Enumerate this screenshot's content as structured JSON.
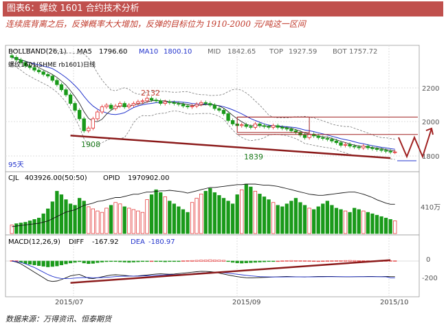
{
  "figure": {
    "title": "图表6：螺纹 1601 合约技术分析",
    "note": "连续底背离之后，反弹概率大大增加，反弹的目标位为 1910-2000 元/吨这一区间",
    "source": "数据来源：万得资讯、恒泰期货"
  },
  "colors": {
    "title_bg": "#c0504d",
    "up": "#e02020",
    "down": "#1a9a1a",
    "ma5": "#1a1a1a",
    "ma10": "#2233cc",
    "band": "#777777",
    "trend": "#8b1a1a",
    "target": "#a02020"
  },
  "chart_data": [
    {
      "type": "candlestick",
      "panel": "price",
      "indicator": {
        "name": "BOLLBAND(26,1)",
        "ma5_label": "MA5",
        "ma5": "1796.60",
        "ma10_label": "MA10",
        "ma10": "1800.10",
        "mid_label": "MID",
        "mid": "1842.65",
        "top_label": "TOP",
        "top": "1927.59",
        "bot_label": "BOT",
        "bot": "1757.72"
      },
      "instrument": "螺纹1601(SHME rb1601)日线",
      "ylim": [
        1680,
        2420
      ],
      "yticks": [
        "2200",
        "2000",
        "1800"
      ],
      "annotations": [
        "2132",
        "1908",
        "1839",
        "95天"
      ],
      "target_zone": {
        "low": 1910,
        "high": 2000,
        "label": "2000"
      },
      "close_values": [
        2350,
        2335,
        2320,
        2300,
        2290,
        2275,
        2265,
        2250,
        2240,
        2215,
        2190,
        2160,
        2130,
        2080,
        2040,
        1990,
        1920,
        1935,
        1990,
        2030,
        2060,
        2070,
        2050,
        2065,
        2080,
        2060,
        2070,
        2080,
        2090,
        2095,
        2110,
        2100,
        2095,
        2080,
        2090,
        2085,
        2080,
        2075,
        2065,
        2060,
        2065,
        2075,
        2085,
        2080,
        2070,
        2050,
        2040,
        2020,
        1980,
        1960,
        1950,
        1955,
        1945,
        1940,
        1960,
        1950,
        1945,
        1940,
        1950,
        1940,
        1935,
        1930,
        1920,
        1910,
        1895,
        1880,
        1900,
        1890,
        1880,
        1875,
        1870,
        1860,
        1850,
        1835,
        1840,
        1830,
        1825,
        1820,
        1830,
        1820,
        1815,
        1810,
        1805,
        1800,
        1795,
        1796
      ]
    },
    {
      "type": "bar",
      "panel": "volume",
      "indicator": {
        "name": "CJL",
        "value": "403926.00(50:50)",
        "opi_label": "OPID",
        "opi": "1970902.00"
      },
      "yticks": [
        "410万"
      ],
      "values": [
        12,
        14,
        15,
        16,
        18,
        20,
        22,
        28,
        35,
        45,
        60,
        55,
        48,
        42,
        40,
        50,
        46,
        38,
        35,
        32,
        30,
        36,
        40,
        44,
        42,
        38,
        36,
        34,
        32,
        30,
        48,
        55,
        62,
        58,
        52,
        46,
        42,
        38,
        34,
        30,
        44,
        50,
        56,
        60,
        64,
        58,
        54,
        50,
        46,
        42,
        55,
        62,
        70,
        66,
        60,
        56,
        52,
        48,
        44,
        40,
        38,
        42,
        46,
        50,
        44,
        40,
        36,
        34,
        38,
        42,
        46,
        40,
        36,
        34,
        32,
        30,
        36,
        34,
        32,
        30,
        28,
        26,
        24,
        22,
        20,
        18
      ],
      "opi_values": [
        10,
        11,
        12,
        13,
        14,
        15,
        16,
        18,
        20,
        24,
        28,
        32,
        36,
        38,
        40,
        44,
        48,
        50,
        52,
        55,
        56,
        58,
        60,
        62,
        62,
        64,
        66,
        68,
        68,
        70,
        72,
        72,
        73,
        74,
        74,
        75,
        74,
        73,
        72,
        70,
        72,
        74,
        76,
        78,
        80,
        80,
        81,
        82,
        83,
        84,
        85,
        85,
        86,
        86,
        86,
        85,
        84,
        84,
        83,
        82,
        80,
        78,
        76,
        74,
        72,
        70,
        68,
        67,
        66,
        66,
        67,
        68,
        69,
        70,
        71,
        72,
        72,
        70,
        68,
        65,
        62,
        58,
        55,
        52,
        50,
        50
      ]
    },
    {
      "type": "bar",
      "panel": "macd",
      "indicator": {
        "name": "MACD(12,26,9)",
        "diff_label": "DIFF",
        "diff": "-167.92",
        "dea_label": "DEA",
        "dea": "-180.97"
      },
      "yticks": [
        "0",
        "-200"
      ],
      "x_labels": [
        "2015/07",
        "2015/09",
        "2015/10"
      ],
      "values": [
        5,
        3,
        -10,
        -20,
        -25,
        -30,
        -35,
        -40,
        -45,
        -42,
        -38,
        -30,
        -22,
        -15,
        -10,
        -5,
        -15,
        -20,
        -18,
        -12,
        -8,
        -5,
        -2,
        -4,
        -6,
        -8,
        -10,
        -8,
        -6,
        -4,
        -2,
        0,
        -2,
        -4,
        -6,
        -4,
        -2,
        -1,
        2,
        4,
        6,
        8,
        10,
        12,
        14,
        12,
        10,
        8,
        -4,
        -10,
        -14,
        -16,
        -14,
        -12,
        -10,
        -8,
        -6,
        -4,
        -2,
        0,
        2,
        4,
        6,
        5,
        4,
        3,
        2,
        1,
        0,
        1,
        2,
        3,
        4,
        5,
        6,
        7,
        6,
        5,
        4,
        3,
        2,
        1,
        2,
        3,
        4,
        3
      ],
      "diff_values": [
        0,
        -10,
        -30,
        -60,
        -90,
        -120,
        -150,
        -180,
        -210,
        -220,
        -215,
        -200,
        -180,
        -160,
        -150,
        -145,
        -165,
        -185,
        -190,
        -180,
        -170,
        -160,
        -150,
        -148,
        -150,
        -155,
        -160,
        -162,
        -160,
        -155,
        -150,
        -145,
        -140,
        -138,
        -140,
        -142,
        -140,
        -135,
        -130,
        -125,
        -120,
        -115,
        -110,
        -112,
        -115,
        -120,
        -130,
        -140,
        -150,
        -160,
        -168,
        -175,
        -180,
        -182,
        -180,
        -178,
        -176,
        -174,
        -172,
        -170,
        -168,
        -167,
        -168,
        -170,
        -171,
        -172,
        -170,
        -168,
        -167,
        -166,
        -166,
        -167,
        -168,
        -169,
        -170,
        -170,
        -169,
        -168,
        -168,
        -167,
        -167,
        -168,
        -168,
        -167,
        -168,
        -167.92
      ],
      "dea_values": [
        0,
        -5,
        -15,
        -30,
        -50,
        -70,
        -95,
        -120,
        -145,
        -165,
        -180,
        -188,
        -190,
        -188,
        -184,
        -180,
        -178,
        -178,
        -180,
        -180,
        -178,
        -175,
        -172,
        -168,
        -165,
        -163,
        -162,
        -162,
        -162,
        -161,
        -159,
        -157,
        -154,
        -151,
        -149,
        -148,
        -147,
        -145,
        -143,
        -140,
        -136,
        -132,
        -128,
        -125,
        -123,
        -122,
        -123,
        -126,
        -130,
        -136,
        -142,
        -148,
        -154,
        -160,
        -164,
        -168,
        -170,
        -171,
        -172,
        -172,
        -172,
        -171,
        -171,
        -171,
        -171,
        -171,
        -171,
        -171,
        -170,
        -170,
        -169,
        -169,
        -169,
        -169,
        -169,
        -169,
        -169,
        -169,
        -169,
        -169,
        -169,
        -169,
        -170,
        -170,
        -180.5,
        -180.97
      ]
    }
  ]
}
